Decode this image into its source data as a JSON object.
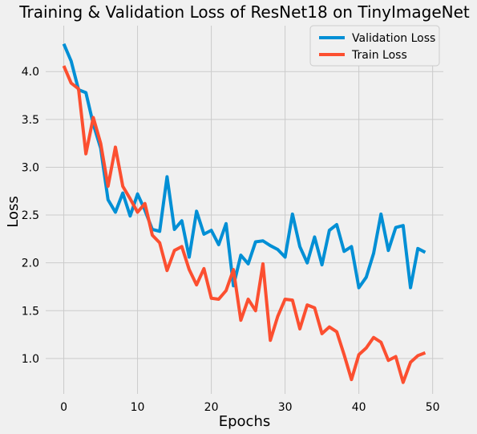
{
  "chart_data": {
    "type": "line",
    "title": "Training & Validation Loss of ResNet18 on TinyImageNet",
    "xlabel": "Epochs",
    "ylabel": "Loss",
    "xlim": [
      -2.45,
      51.45
    ],
    "ylim": [
      0.63,
      4.48
    ],
    "xticks": [
      0,
      10,
      20,
      30,
      40,
      50
    ],
    "yticks": [
      1.0,
      1.5,
      2.0,
      2.5,
      3.0,
      3.5,
      4.0
    ],
    "xtick_labels": [
      "0",
      "10",
      "20",
      "30",
      "40",
      "50"
    ],
    "ytick_labels": [
      "1.0",
      "1.5",
      "2.0",
      "2.5",
      "3.0",
      "3.5",
      "4.0"
    ],
    "grid": true,
    "legend_position": "top-right",
    "x": [
      0,
      1,
      2,
      3,
      4,
      5,
      6,
      7,
      8,
      9,
      10,
      11,
      12,
      13,
      14,
      15,
      16,
      17,
      18,
      19,
      20,
      21,
      22,
      23,
      24,
      25,
      26,
      27,
      28,
      29,
      30,
      31,
      32,
      33,
      34,
      35,
      36,
      37,
      38,
      39,
      40,
      41,
      42,
      43,
      44,
      45,
      46,
      47,
      48,
      49
    ],
    "series": [
      {
        "name": "Validation Loss",
        "color": "#008fd5",
        "values": [
          4.29,
          4.11,
          3.81,
          3.78,
          3.45,
          3.2,
          2.66,
          2.53,
          2.73,
          2.49,
          2.72,
          2.55,
          2.35,
          2.33,
          2.9,
          2.35,
          2.44,
          2.06,
          2.54,
          2.3,
          2.34,
          2.19,
          2.41,
          1.76,
          2.08,
          1.99,
          2.22,
          2.23,
          2.18,
          2.14,
          2.06,
          2.51,
          2.17,
          2.0,
          2.27,
          1.98,
          2.34,
          2.4,
          2.12,
          2.17,
          1.74,
          1.85,
          2.1,
          2.51,
          2.13,
          2.37,
          2.39,
          1.74,
          2.15,
          2.11
        ]
      },
      {
        "name": "Train Loss",
        "color": "#fc4f30",
        "values": [
          4.06,
          3.88,
          3.82,
          3.14,
          3.52,
          3.25,
          2.8,
          3.21,
          2.8,
          2.67,
          2.53,
          2.62,
          2.29,
          2.21,
          1.92,
          2.13,
          2.17,
          1.93,
          1.77,
          1.94,
          1.63,
          1.62,
          1.71,
          1.93,
          1.4,
          1.62,
          1.5,
          1.99,
          1.19,
          1.44,
          1.62,
          1.61,
          1.31,
          1.56,
          1.53,
          1.26,
          1.33,
          1.28,
          1.04,
          0.78,
          1.04,
          1.11,
          1.22,
          1.17,
          0.98,
          1.02,
          0.75,
          0.96,
          1.03,
          1.06
        ]
      }
    ]
  }
}
